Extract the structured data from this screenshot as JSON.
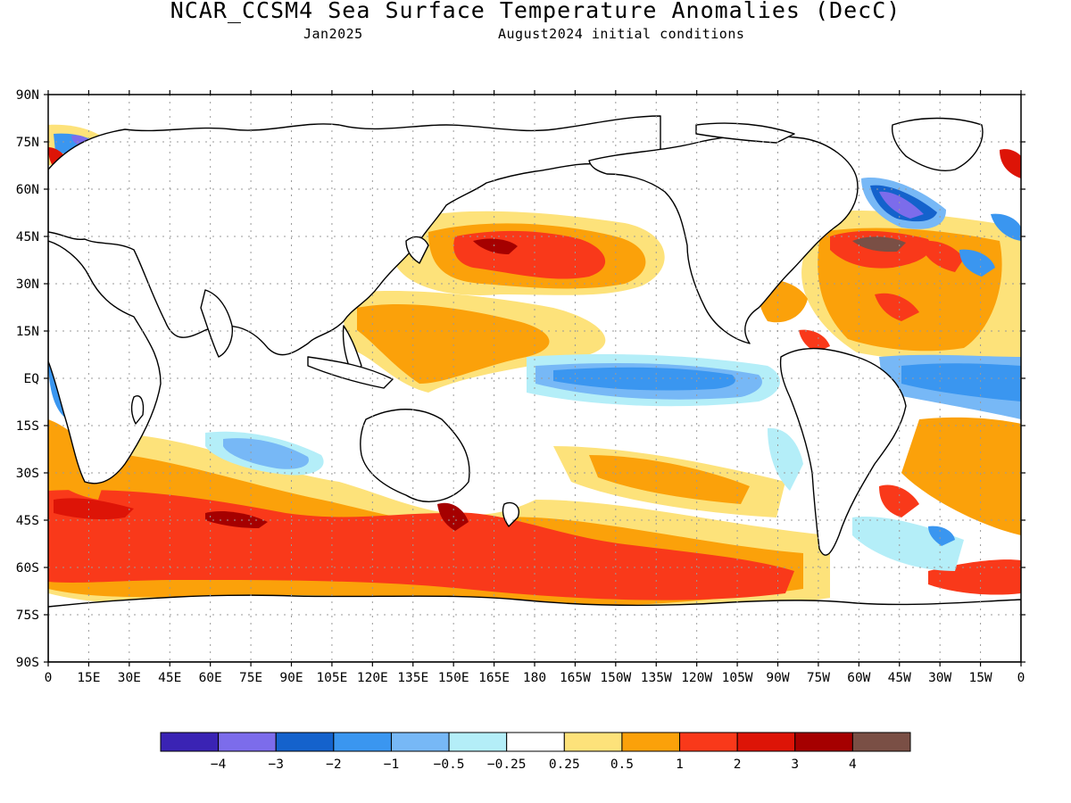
{
  "title": "NCAR_CCSM4 Sea Surface Temperature Anomalies (DecC)",
  "subtitle_left": "Jan2025",
  "subtitle_right": "August2024 initial conditions",
  "map": {
    "lat_labels": [
      "90N",
      "75N",
      "60N",
      "45N",
      "30N",
      "15N",
      "EQ",
      "15S",
      "30S",
      "45S",
      "60S",
      "75S",
      "90S"
    ],
    "lon_labels": [
      "0",
      "15E",
      "30E",
      "45E",
      "60E",
      "75E",
      "90E",
      "105E",
      "120E",
      "135E",
      "150E",
      "165E",
      "180",
      "165W",
      "150W",
      "135W",
      "120W",
      "105W",
      "90W",
      "75W",
      "60W",
      "45W",
      "30W",
      "15W",
      "0"
    ]
  },
  "colorbar": {
    "colors": [
      "#3a23b4",
      "#7c6ceb",
      "#1462cc",
      "#3a96f0",
      "#77b8f6",
      "#b4eef8",
      "#ffffff",
      "#fde27a",
      "#fba10a",
      "#f9391a",
      "#dd1407",
      "#a50000",
      "#7a4f45"
    ],
    "labels": [
      "−4",
      "−3",
      "−2",
      "−1",
      "−0.5",
      "−0.25",
      "0.25",
      "0.5",
      "1",
      "2",
      "3",
      "4"
    ]
  }
}
